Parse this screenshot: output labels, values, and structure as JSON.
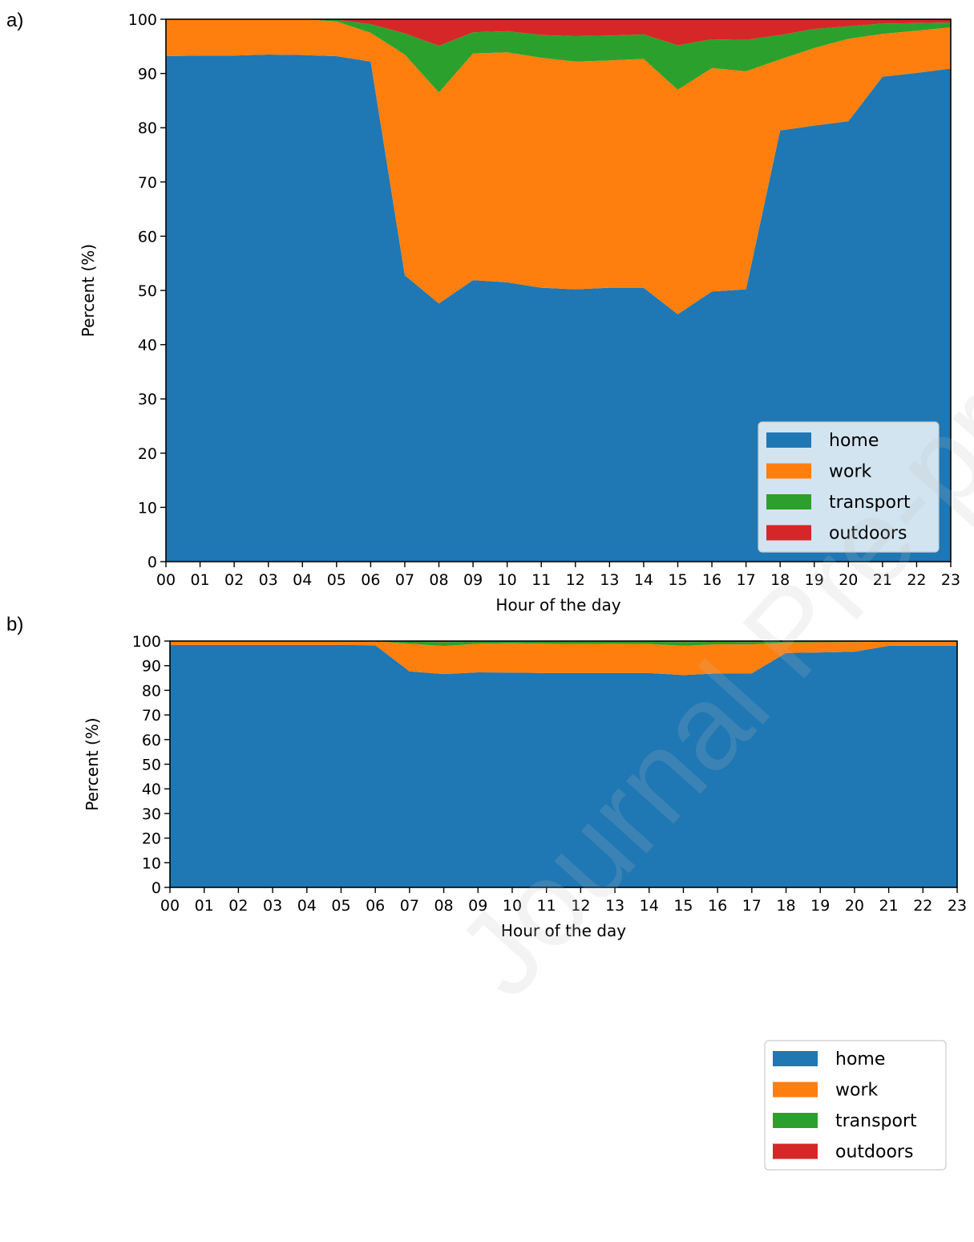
{
  "panels": [
    {
      "label": "a)"
    },
    {
      "label": "b)"
    }
  ],
  "watermark": "Journal Pre-proof",
  "colors": {
    "home": "#1f77b4",
    "work": "#ff7f0e",
    "transport": "#2ca02c",
    "outdoors": "#d62728"
  },
  "chart_data": [
    {
      "type": "area",
      "stacked": true,
      "xlabel": "Hour of the day",
      "ylabel": "Percent (%)",
      "ylim": [
        0,
        100
      ],
      "yticks": [
        0,
        10,
        20,
        30,
        40,
        50,
        60,
        70,
        80,
        90,
        100
      ],
      "categories": [
        "00",
        "01",
        "02",
        "03",
        "04",
        "05",
        "06",
        "07",
        "08",
        "09",
        "10",
        "11",
        "12",
        "13",
        "14",
        "15",
        "16",
        "17",
        "18",
        "19",
        "20",
        "21",
        "22",
        "23"
      ],
      "legend_position": "lower-right",
      "grid": false,
      "series": [
        {
          "name": "home",
          "values": [
            93.2,
            93.3,
            93.3,
            93.5,
            93.4,
            93.2,
            92.2,
            52.8,
            47.6,
            51.9,
            51.5,
            50.5,
            50.2,
            50.5,
            50.5,
            45.6,
            49.8,
            50.2,
            79.5,
            80.4,
            81.2,
            89.4,
            90.1,
            90.9
          ]
        },
        {
          "name": "work",
          "values": [
            6.8,
            6.7,
            6.7,
            6.5,
            6.6,
            6.4,
            5.3,
            40.7,
            38.9,
            41.8,
            42.4,
            42.4,
            42.0,
            41.9,
            42.2,
            41.4,
            41.2,
            40.2,
            13.1,
            14.3,
            15.2,
            7.9,
            7.8,
            7.6
          ]
        },
        {
          "name": "transport",
          "values": [
            0.0,
            0.0,
            0.0,
            0.0,
            0.0,
            0.3,
            1.6,
            3.9,
            8.6,
            3.9,
            3.9,
            4.2,
            4.7,
            4.6,
            4.5,
            8.2,
            5.3,
            5.8,
            4.5,
            3.5,
            2.3,
            1.9,
            1.4,
            0.9
          ]
        },
        {
          "name": "outdoors",
          "values": [
            0.0,
            0.0,
            0.0,
            0.0,
            0.0,
            0.1,
            0.9,
            2.6,
            4.9,
            2.4,
            2.2,
            2.9,
            3.1,
            3.0,
            2.8,
            4.8,
            3.7,
            3.8,
            2.9,
            1.8,
            1.3,
            0.8,
            0.7,
            0.6
          ]
        }
      ]
    },
    {
      "type": "area",
      "stacked": true,
      "xlabel": "Hour of the day",
      "ylabel": "Percent (%)",
      "ylim": [
        0,
        100
      ],
      "yticks": [
        0,
        10,
        20,
        30,
        40,
        50,
        60,
        70,
        80,
        90,
        100
      ],
      "categories": [
        "00",
        "01",
        "02",
        "03",
        "04",
        "05",
        "06",
        "07",
        "08",
        "09",
        "10",
        "11",
        "12",
        "13",
        "14",
        "15",
        "16",
        "17",
        "18",
        "19",
        "20",
        "21",
        "22",
        "23"
      ],
      "legend_position": "lower-right",
      "grid": false,
      "series": [
        {
          "name": "home",
          "values": [
            98.4,
            98.4,
            98.4,
            98.4,
            98.4,
            98.4,
            98.3,
            87.7,
            86.6,
            87.3,
            87.2,
            87.0,
            87.0,
            87.0,
            87.0,
            86.2,
            86.9,
            86.9,
            95.2,
            95.4,
            95.7,
            98.1,
            98.1,
            98.1
          ]
        },
        {
          "name": "work",
          "values": [
            1.6,
            1.6,
            1.6,
            1.6,
            1.6,
            1.6,
            1.6,
            11.2,
            11.4,
            11.6,
            11.9,
            11.9,
            11.8,
            11.9,
            11.8,
            11.9,
            11.8,
            11.7,
            4.2,
            4.1,
            3.9,
            1.6,
            1.7,
            1.7
          ]
        },
        {
          "name": "transport",
          "values": [
            0.0,
            0.0,
            0.0,
            0.0,
            0.0,
            0.0,
            0.1,
            0.8,
            1.6,
            0.8,
            0.7,
            0.8,
            0.9,
            0.8,
            0.9,
            1.5,
            1.0,
            1.0,
            0.5,
            0.4,
            0.3,
            0.2,
            0.1,
            0.1
          ]
        },
        {
          "name": "outdoors",
          "values": [
            0.0,
            0.0,
            0.0,
            0.0,
            0.0,
            0.0,
            0.0,
            0.3,
            0.4,
            0.3,
            0.2,
            0.3,
            0.3,
            0.3,
            0.3,
            0.4,
            0.3,
            0.4,
            0.1,
            0.1,
            0.1,
            0.1,
            0.1,
            0.1
          ]
        }
      ]
    }
  ]
}
